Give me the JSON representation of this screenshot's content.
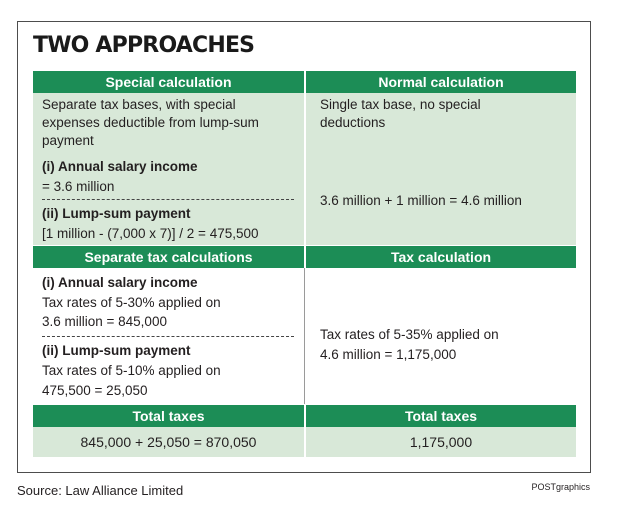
{
  "title": "TWO APPROACHES",
  "left": {
    "header1": "Special calculation",
    "desc": "Separate tax bases, with special expenses deductible from lump-sum payment",
    "item1_label": "(i) Annual salary income",
    "item1_value": "= 3.6 million",
    "item2_label": "(ii) Lump-sum payment",
    "item2_value": "[1 million - (7,000 x 7)] / 2 = 475,500",
    "header2": "Separate tax calculations",
    "calc1_label": "(i) Annual salary income",
    "calc1_line1": "Tax rates of 5-30% applied on",
    "calc1_line2": "3.6 million = 845,000",
    "calc2_label": "(ii) Lump-sum payment",
    "calc2_line1": "Tax rates of 5-10% applied on",
    "calc2_line2": "475,500 = 25,050",
    "total_header": "Total taxes",
    "total_value": "845,000 + 25,050 = 870,050"
  },
  "right": {
    "header1": "Normal calculation",
    "desc": "Single tax base, no special deductions",
    "formula": "3.6 million + 1 million = 4.6 million",
    "header2": "Tax calculation",
    "calc_line1": "Tax rates of 5-35% applied on",
    "calc_line2": "4.6 million = 1,175,000",
    "total_header": "Total taxes",
    "total_value": "1,175,000"
  },
  "source": "Source: Law Alliance Limited",
  "credit": "POSTgraphics",
  "colors": {
    "header_green": "#1c8d56",
    "light_green": "#d8e8d8"
  }
}
